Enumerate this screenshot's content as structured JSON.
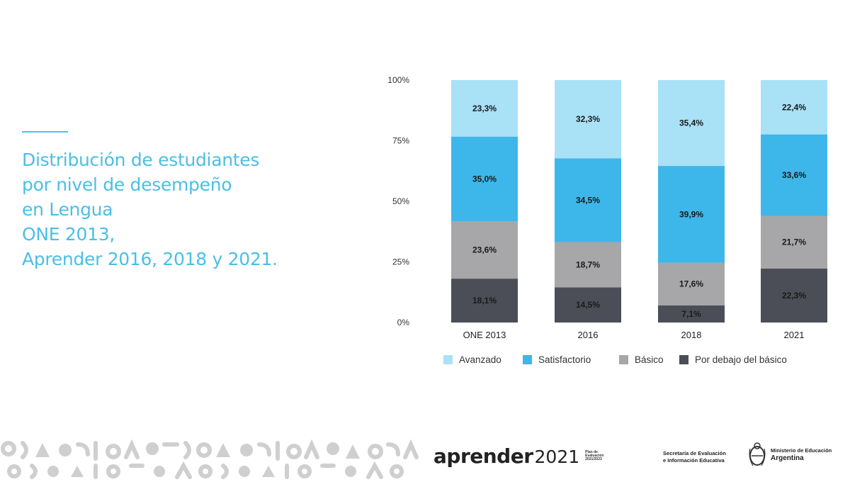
{
  "title_lines": [
    "Distribución de estudiantes",
    "por nivel de desempeño",
    "en Lengua",
    "ONE 2013,",
    "Aprender 2016, 2018 y 2021."
  ],
  "chart_data": {
    "type": "bar",
    "stacked": true,
    "percent": true,
    "categories": [
      "ONE 2013",
      "2016",
      "2018",
      "2021"
    ],
    "ylim": [
      0,
      100
    ],
    "y_ticks": [
      "0%",
      "25%",
      "50%",
      "75%",
      "100%"
    ],
    "legend_position": "bottom",
    "series": [
      {
        "name": "Por debajo del básico",
        "color": "#4b4e56",
        "values": [
          18.1,
          14.5,
          7.1,
          22.3
        ],
        "labels": [
          "18,1%",
          "14,5%",
          "7,1%",
          "22,3%"
        ]
      },
      {
        "name": "Básico",
        "color": "#a7a7a9",
        "values": [
          23.6,
          18.7,
          17.6,
          21.7
        ],
        "labels": [
          "23,6%",
          "18,7%",
          "17,6%",
          "21,7%"
        ]
      },
      {
        "name": "Satisfactorio",
        "color": "#3db7e9",
        "values": [
          35.0,
          34.5,
          39.9,
          33.6
        ],
        "labels": [
          "35,0%",
          "34,5%",
          "39,9%",
          "33,6%"
        ]
      },
      {
        "name": "Avanzado",
        "color": "#a9e1f7",
        "values": [
          23.3,
          32.3,
          35.4,
          22.4
        ],
        "labels": [
          "23,3%",
          "32,3%",
          "35,4%",
          "22,4%"
        ]
      }
    ],
    "legend_order": [
      "Avanzado",
      "Satisfactorio",
      "Básico",
      "Por debajo del básico"
    ]
  },
  "footer": {
    "brand_word": "aprender",
    "brand_year": "2021",
    "brand_plan": "Plan de Evaluación 2021/2023",
    "secretaria_lines": [
      "Secretaría de Evaluación",
      "e Información Educativa"
    ],
    "ministerio_line": "Ministerio de Educación",
    "ministerio_country": "Argentina"
  },
  "colors": {
    "title": "#4bbfe5",
    "accent": "#55c1e6"
  }
}
